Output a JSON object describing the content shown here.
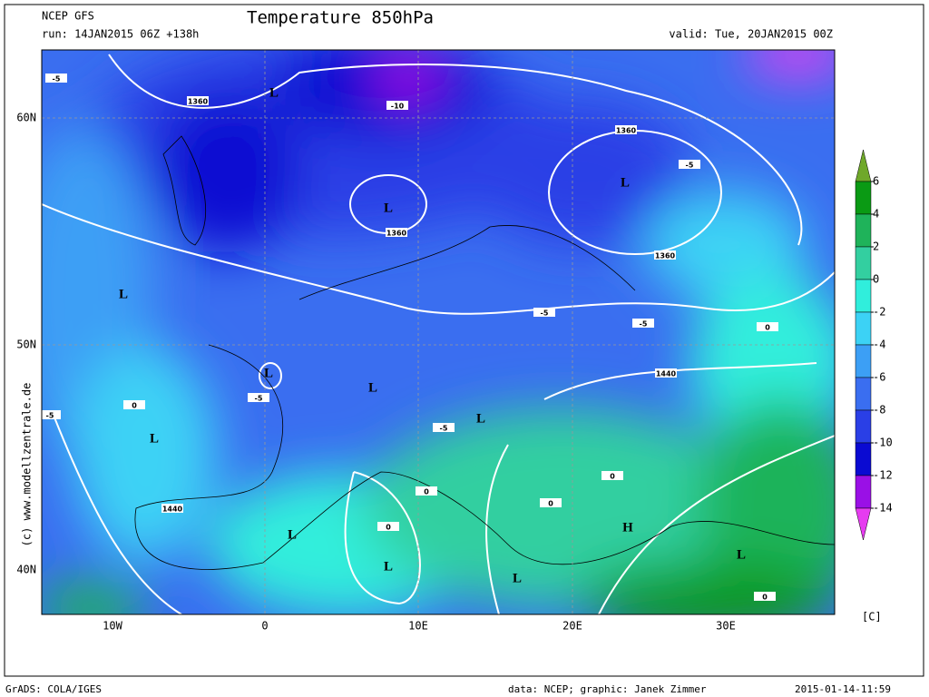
{
  "header": {
    "model": "NCEP GFS",
    "run": "run: 14JAN2015 06Z +138h",
    "title": "Temperature 850hPa",
    "valid": "valid: Tue, 20JAN2015 00Z"
  },
  "map": {
    "lat_labels": [
      "60N",
      "50N",
      "40N"
    ],
    "lon_labels": [
      "10W",
      "0",
      "10E",
      "20E",
      "30E"
    ],
    "pressure_centers": [
      "L",
      "L",
      "L",
      "L",
      "L",
      "L",
      "L",
      "L",
      "L",
      "L",
      "L",
      "L",
      "H"
    ],
    "contour_labels": [
      "1360",
      "1360",
      "1360",
      "1360",
      "1440",
      "1440",
      "-10",
      "-5",
      "-5",
      "-5",
      "-5",
      "-5",
      "-5",
      "-5",
      "0",
      "0",
      "0",
      "0",
      "0",
      "0",
      "0"
    ]
  },
  "colorbar": {
    "ticks": [
      6,
      4,
      2,
      0,
      -2,
      -4,
      -6,
      -8,
      -10,
      -12,
      -14
    ],
    "colors": [
      "#6fa82a",
      "#0a9a14",
      "#1fb35a",
      "#33cfa0",
      "#30eedc",
      "#3cd2f5",
      "#3c9ff5",
      "#3a6ef0",
      "#2a3fe6",
      "#0a0ad2",
      "#9a10e6",
      "#e63cf0"
    ],
    "unit": "[C]"
  },
  "watermark": "(c) www.modellzentrale.de",
  "footer": {
    "left": "GrADS: COLA/IGES",
    "center": "data: NCEP; graphic: Janek Zimmer",
    "right": "2015-01-14-11:59"
  }
}
